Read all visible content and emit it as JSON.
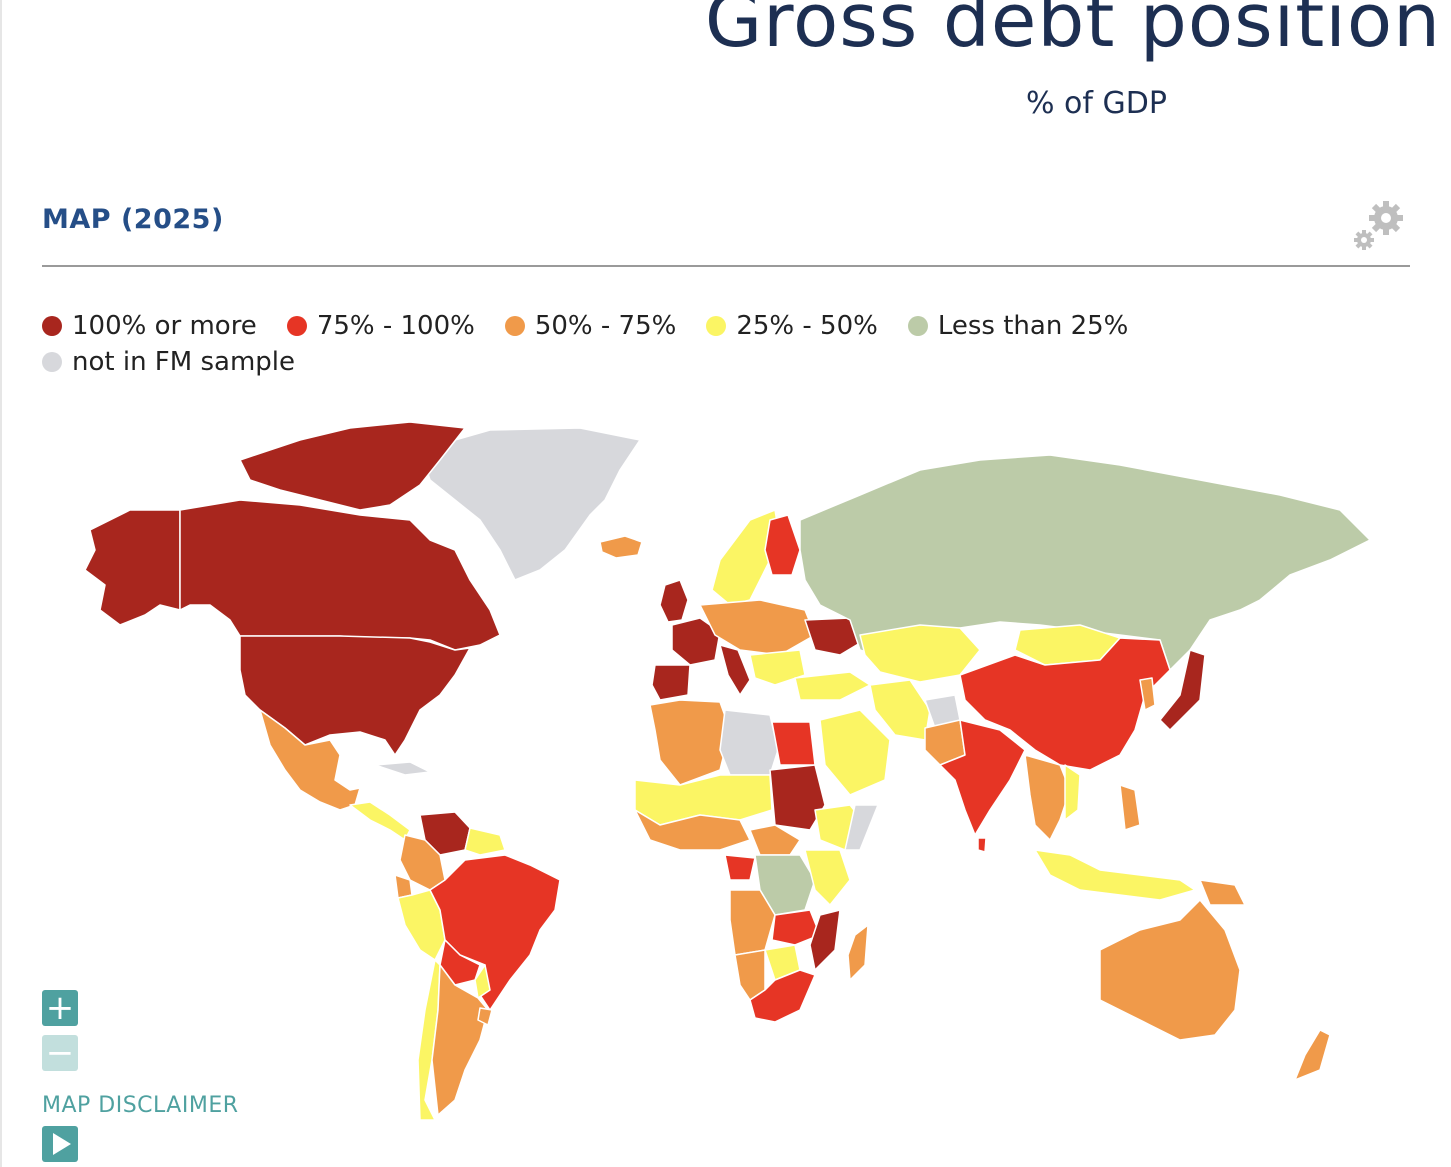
{
  "header": {
    "title": "Gross debt position",
    "subtitle": "% of GDP"
  },
  "section": {
    "title": "MAP (2025)",
    "settings_icon": "gears-icon"
  },
  "legend": [
    {
      "label": "100% or more",
      "color": "#a8261e"
    },
    {
      "label": "75% - 100%",
      "color": "#e63525"
    },
    {
      "label": "50% - 75%",
      "color": "#f09a4a"
    },
    {
      "label": "25% - 50%",
      "color": "#fbf564"
    },
    {
      "label": "Less than 25%",
      "color": "#bccba8"
    },
    {
      "label": "not in FM sample",
      "color": "#d7d8dc"
    }
  ],
  "controls": {
    "zoom_in": "+",
    "zoom_out": "−",
    "disclaimer": "MAP DISCLAIMER",
    "play_icon": "play-icon"
  }
}
